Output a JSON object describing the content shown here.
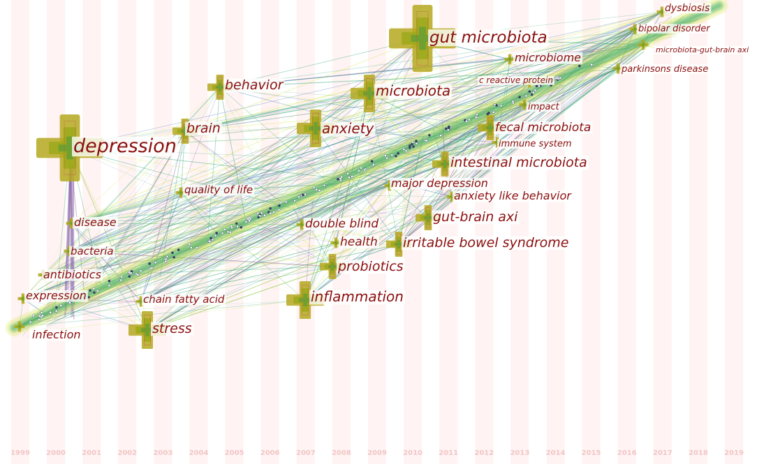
{
  "years": [
    "1999",
    "2000",
    "2001",
    "2002",
    "2003",
    "2004",
    "2005",
    "2006",
    "2007",
    "2008",
    "2009",
    "2010",
    "2011",
    "2012",
    "2013",
    "2014",
    "2015",
    "2016",
    "2017",
    "2018",
    "2019"
  ],
  "colors": {
    "label": "#8b0f0f",
    "year_label": "#f2c6c6",
    "stripe": "#fff3f3",
    "node_outer": "#b5a820",
    "node_mid": "#9fa81c",
    "node_inner": "#6fa030",
    "ring": "#c0504d",
    "link_green": "#22a06b",
    "link_yellow": "#d6e84a",
    "link_purple": "#8a5ca8",
    "link_blue": "#3c78b4"
  },
  "keywords": [
    {
      "id": "depression",
      "label": "depression",
      "year": "2000",
      "size": "xl"
    },
    {
      "id": "gut-microbiota",
      "label": "gut microbiota",
      "year": "2011",
      "size": "xl"
    },
    {
      "id": "behavior",
      "label": "behavior",
      "year": "2005",
      "size": "m"
    },
    {
      "id": "microbiota",
      "label": "microbiota",
      "year": "2009",
      "size": "l"
    },
    {
      "id": "brain",
      "label": "brain",
      "year": "2004",
      "size": "m"
    },
    {
      "id": "anxiety",
      "label": "anxiety",
      "year": "2008",
      "size": "l"
    },
    {
      "id": "microbiome",
      "label": "microbiome",
      "year": "2013",
      "size": "s"
    },
    {
      "id": "c-reactive-protein",
      "label": "c reactive protein",
      "year": "2014",
      "size": "s"
    },
    {
      "id": "impact",
      "label": "impact",
      "year": "2014",
      "size": "s"
    },
    {
      "id": "fecal-microbiota",
      "label": "fecal microbiota",
      "year": "2013",
      "size": "m"
    },
    {
      "id": "immune-system",
      "label": "immune system",
      "year": "2013",
      "size": "s"
    },
    {
      "id": "intestinal-microbiota",
      "label": "intestinal microbiota",
      "year": "2012",
      "size": "m"
    },
    {
      "id": "major-depression",
      "label": "major depression",
      "year": "2010",
      "size": "s"
    },
    {
      "id": "anxiety-like-behavior",
      "label": "anxiety like behavior",
      "year": "2012",
      "size": "s"
    },
    {
      "id": "gut-brain-axi",
      "label": "gut-brain axi",
      "year": "2011",
      "size": "m"
    },
    {
      "id": "double-blind",
      "label": "double blind",
      "year": "2008",
      "size": "s"
    },
    {
      "id": "health",
      "label": "health",
      "year": "2009",
      "size": "s"
    },
    {
      "id": "irritable-bowel-syndrome",
      "label": "irritable bowel syndrome",
      "year": "2010",
      "size": "m"
    },
    {
      "id": "probiotics",
      "label": "probiotics",
      "year": "2009",
      "size": "m"
    },
    {
      "id": "inflammation",
      "label": "inflammation",
      "year": "2008",
      "size": "l"
    },
    {
      "id": "quality-of-life",
      "label": "quality of life",
      "year": "2004",
      "size": "s"
    },
    {
      "id": "disease",
      "label": "disease",
      "year": "2001",
      "size": "s"
    },
    {
      "id": "bacteria",
      "label": "bacteria",
      "year": "2001",
      "size": "s"
    },
    {
      "id": "antibiotics",
      "label": "antibiotics",
      "year": "2000",
      "size": "s"
    },
    {
      "id": "expression",
      "label": "expression",
      "year": "1999",
      "size": "s"
    },
    {
      "id": "chain-fatty-acid",
      "label": "chain fatty acid",
      "year": "2003",
      "size": "s"
    },
    {
      "id": "stress",
      "label": "stress",
      "year": "2003",
      "size": "l"
    },
    {
      "id": "infection",
      "label": "infection",
      "year": "1999",
      "size": "s"
    },
    {
      "id": "dysbiosis",
      "label": "dysbiosis",
      "year": "2018",
      "size": "s"
    },
    {
      "id": "bipolar-disorder",
      "label": "bipolar disorder",
      "year": "2018",
      "size": "s"
    },
    {
      "id": "microbiota-gut-brain-axi",
      "label": "microbiota-gut-brain axi",
      "year": "2017",
      "size": "s"
    },
    {
      "id": "parkinsons-disease",
      "label": "parkinsons disease",
      "year": "2017",
      "size": "s"
    }
  ]
}
